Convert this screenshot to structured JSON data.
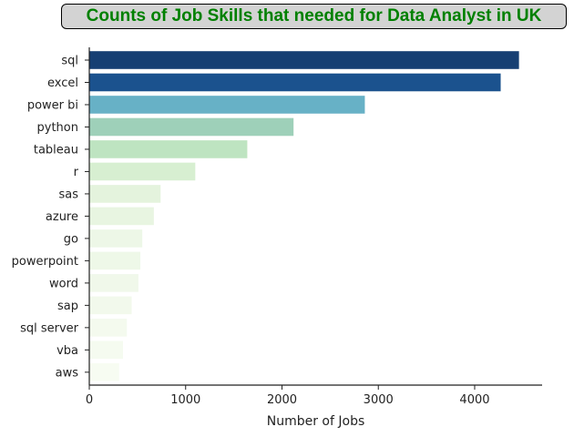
{
  "chart_data": {
    "type": "bar",
    "orientation": "horizontal",
    "title": "Counts of Job Skills that needed for Data Analyst in UK",
    "xlabel": "Number of Jobs",
    "ylabel": "",
    "categories": [
      "sql",
      "excel",
      "power bi",
      "python",
      "tableau",
      "r",
      "sas",
      "azure",
      "go",
      "powerpoint",
      "word",
      "sap",
      "sql server",
      "vba",
      "aws"
    ],
    "values": [
      4460,
      4270,
      2860,
      2120,
      1640,
      1100,
      740,
      670,
      550,
      530,
      510,
      440,
      390,
      350,
      310
    ],
    "xlim": [
      0,
      4700
    ],
    "xticks": [
      0,
      1000,
      2000,
      3000,
      4000
    ],
    "grid": false,
    "colormap": "GnBu_r",
    "colors": [
      "#163f73",
      "#1b528e",
      "#67b1c6",
      "#9ed0b9",
      "#bee4c1",
      "#d7efd1",
      "#e4f3dd",
      "#e8f5e1",
      "#edf7e7",
      "#eef8e8",
      "#f0f8ea",
      "#f2f9ec",
      "#f4faee",
      "#f5fbf0",
      "#f7fcf2"
    ],
    "title_color": "#008000",
    "title_background": "#d3d3d3"
  }
}
